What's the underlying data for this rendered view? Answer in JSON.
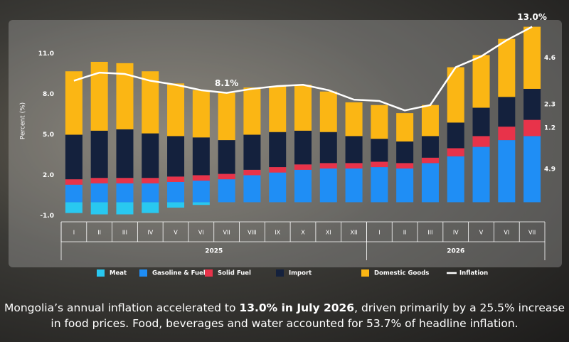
{
  "chart_data": {
    "type": "bar",
    "stacked": true,
    "y_label": "Percent (%)",
    "categories": [
      "I",
      "II",
      "III",
      "IV",
      "V",
      "VI",
      "VII",
      "VIII",
      "IX",
      "X",
      "XI",
      "XII",
      "I",
      "II",
      "III",
      "IV",
      "V",
      "VI",
      "VII"
    ],
    "group_labels": [
      "2025",
      "2026"
    ],
    "ylim": [
      -1.4,
      13.4
    ],
    "yticks": [
      {
        "value": -1,
        "label": "-1.0"
      },
      {
        "value": 2,
        "label": "2.0"
      },
      {
        "value": 5,
        "label": "5.0"
      },
      {
        "value": 8,
        "label": "8.0"
      },
      {
        "value": 11,
        "label": "11.0"
      }
    ],
    "end_labels": true,
    "series": [
      {
        "name": "Meat",
        "color": "#29c8f0",
        "values": [
          -0.8,
          -0.9,
          -0.9,
          -0.8,
          -0.4,
          -0.2,
          0,
          0,
          0,
          0,
          0,
          0,
          0,
          0,
          0,
          0,
          0,
          0,
          0
        ]
      },
      {
        "name": "Gasoline & Fuel",
        "color": "#1f8ef5",
        "values": [
          1.3,
          1.4,
          1.4,
          1.4,
          1.5,
          1.6,
          1.7,
          2.0,
          2.2,
          2.4,
          2.5,
          2.5,
          2.6,
          2.5,
          2.9,
          3.4,
          4.1,
          4.6,
          4.9
        ]
      },
      {
        "name": "Solid Fuel",
        "color": "#e8334a",
        "values": [
          0.4,
          0.4,
          0.4,
          0.4,
          0.4,
          0.4,
          0.4,
          0.4,
          0.4,
          0.4,
          0.4,
          0.4,
          0.4,
          0.4,
          0.4,
          0.6,
          0.8,
          1.0,
          1.2
        ]
      },
      {
        "name": "Import",
        "color": "#14213d",
        "values": [
          3.3,
          3.5,
          3.6,
          3.3,
          3.0,
          2.8,
          2.5,
          2.6,
          2.6,
          2.5,
          2.3,
          2.0,
          1.7,
          1.6,
          1.6,
          1.9,
          2.1,
          2.2,
          2.3
        ]
      },
      {
        "name": "Domestic Goods",
        "color": "#fbb614",
        "values": [
          4.7,
          5.1,
          4.9,
          4.6,
          3.9,
          3.5,
          3.5,
          3.5,
          3.4,
          3.4,
          3.0,
          2.5,
          2.5,
          2.1,
          2.3,
          4.1,
          3.9,
          4.3,
          4.6
        ]
      },
      {
        "name": "Inflation",
        "color": "#ffffff",
        "type": "line",
        "values": [
          9.0,
          9.6,
          9.5,
          9.0,
          8.7,
          8.3,
          8.1,
          8.4,
          8.6,
          8.7,
          8.3,
          7.6,
          7.5,
          6.8,
          7.2,
          10.0,
          10.8,
          12.0,
          13.0
        ],
        "value_labels": [
          null,
          null,
          null,
          null,
          null,
          null,
          "8.1%",
          null,
          null,
          null,
          null,
          null,
          null,
          null,
          null,
          null,
          null,
          null,
          "13.0%"
        ]
      }
    ]
  },
  "caption": [
    "Mongolia’s annual inflation accelerated to ",
    "13.0% in July 2026",
    ", driven primarily by a 25.5% increase in food prices. Food, beverages and water accounted for 53.7% of headline inflation."
  ]
}
